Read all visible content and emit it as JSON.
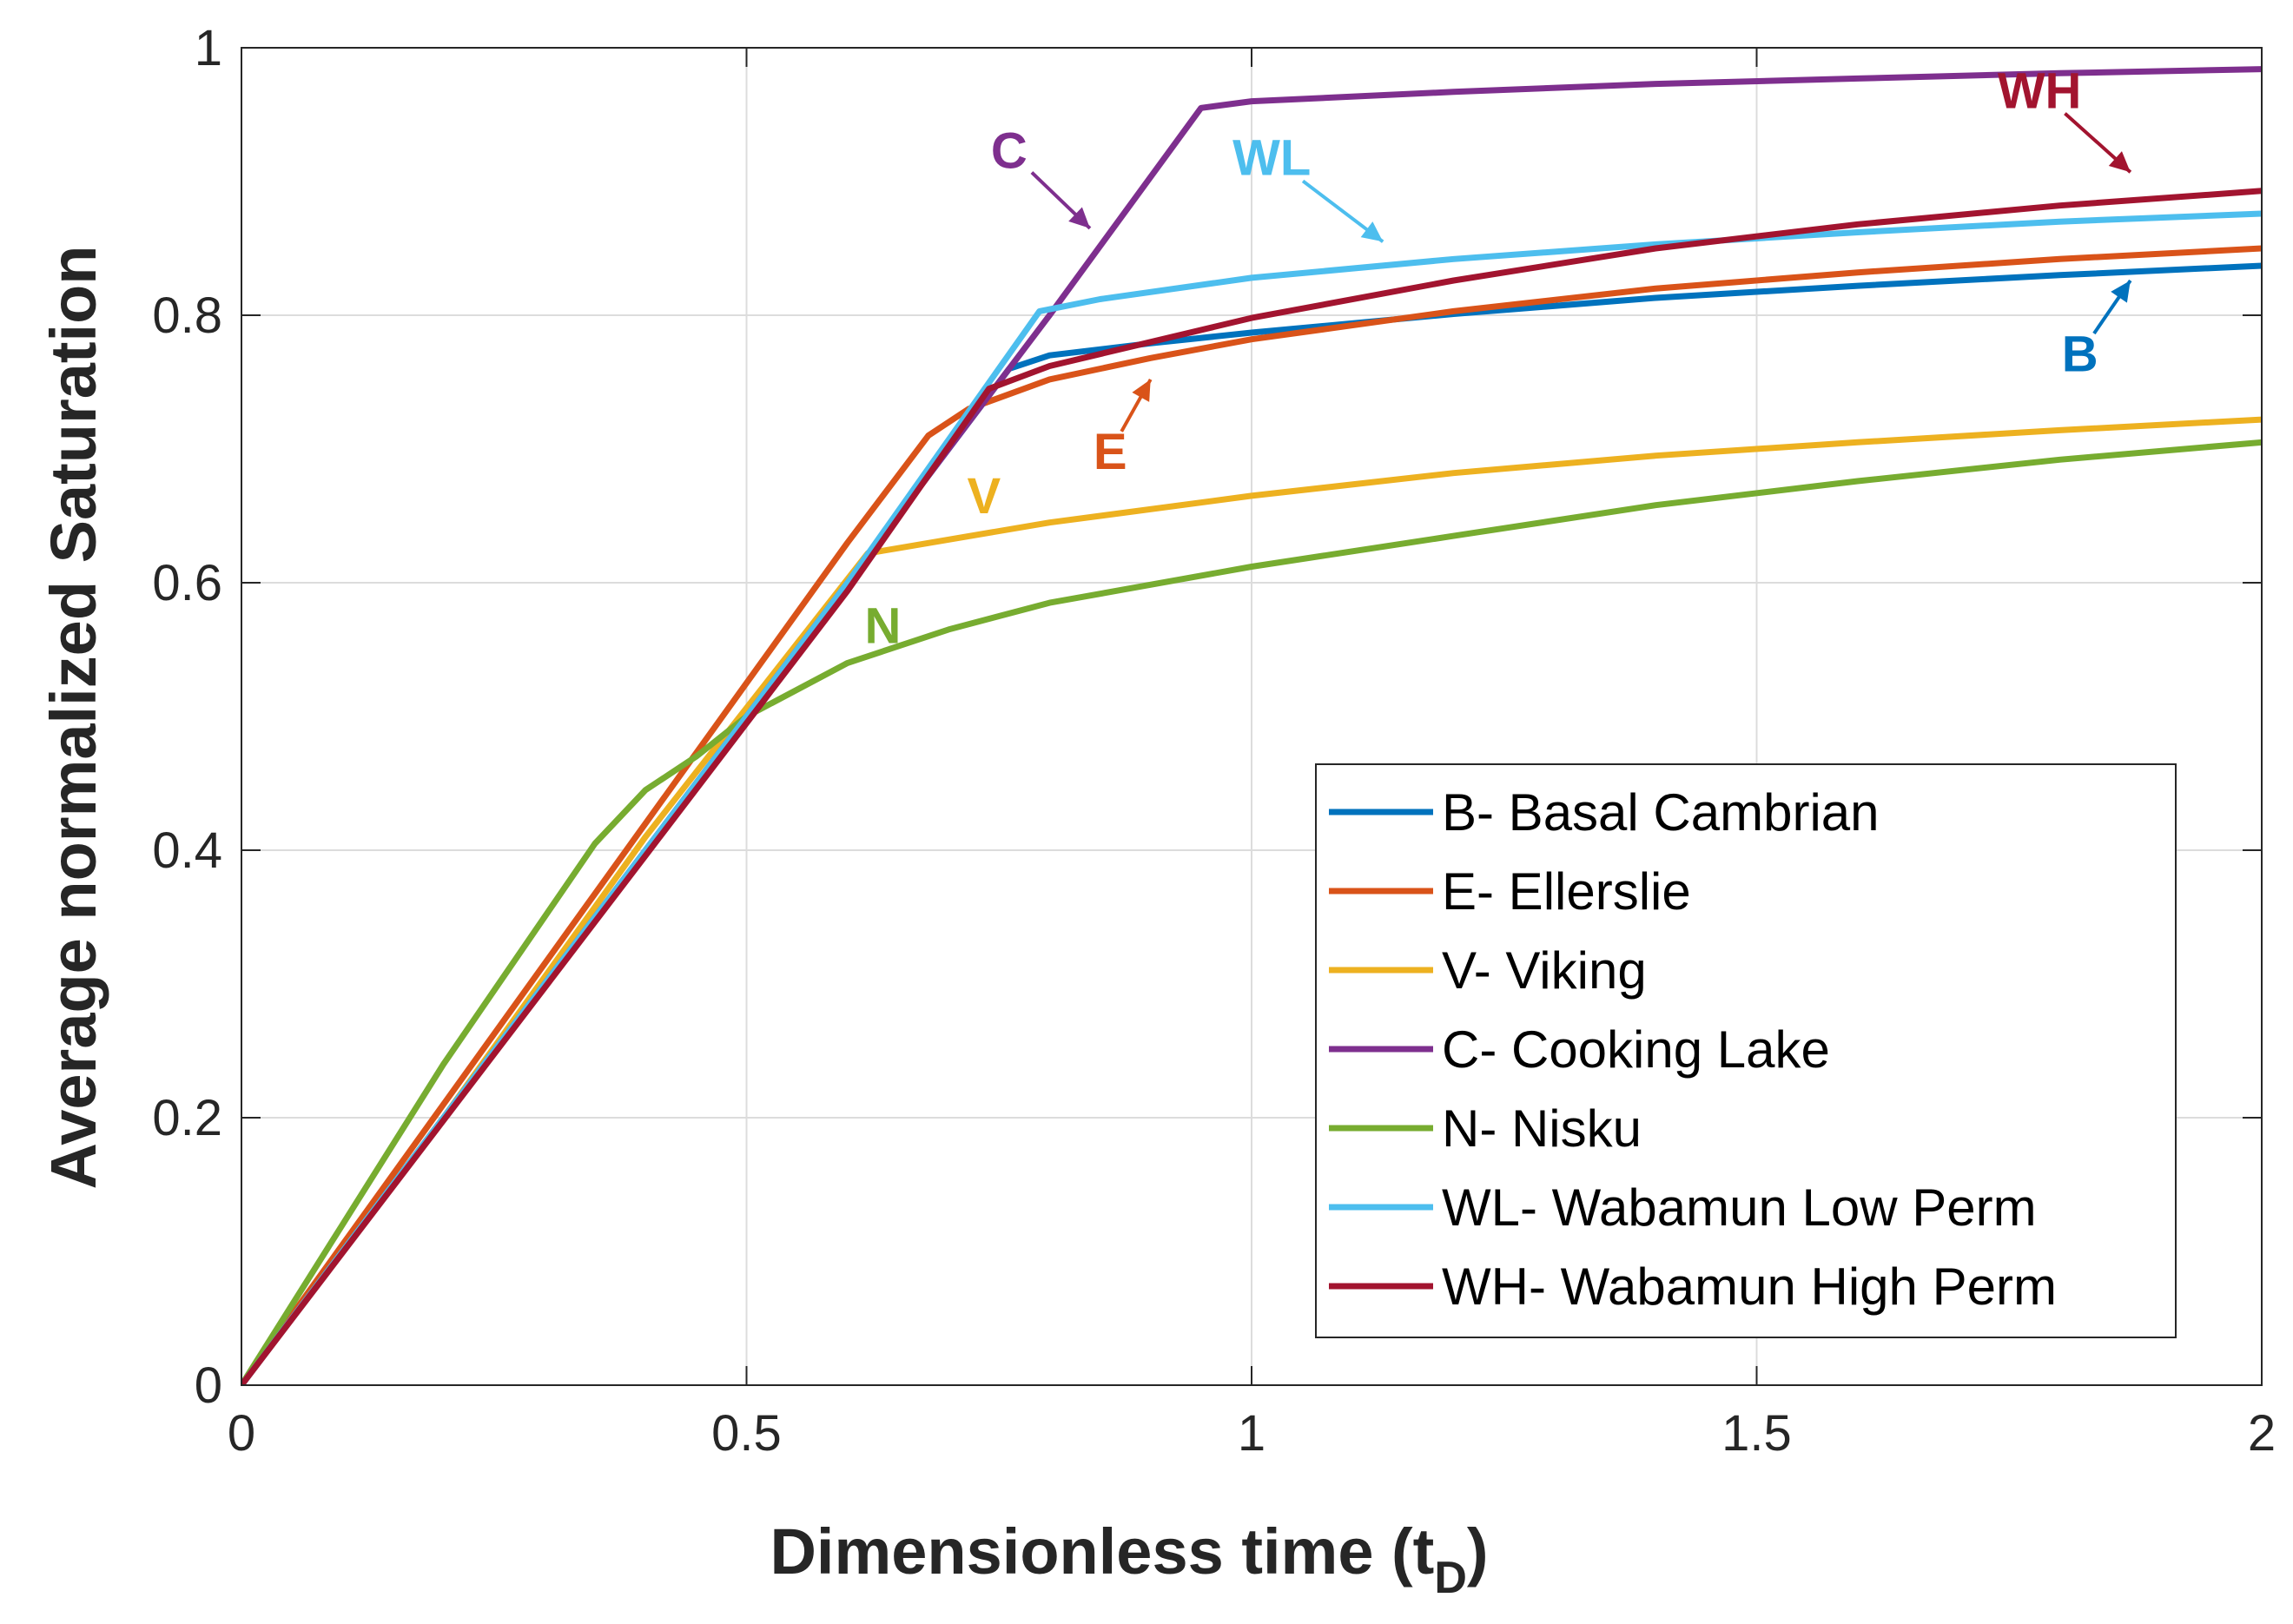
{
  "chart_data": {
    "type": "line",
    "title": "",
    "xlabel": "Dimensionless time (t",
    "xlabel_sub": "D",
    "xlabel_close": ")",
    "ylabel": "Average normalized Saturation",
    "xlim": [
      0,
      2
    ],
    "ylim": [
      0,
      1
    ],
    "xticks": [
      0,
      0.5,
      1,
      1.5,
      2
    ],
    "xtick_labels": [
      "0",
      "0.5",
      "1",
      "1.5",
      "2"
    ],
    "yticks": [
      0,
      0.2,
      0.4,
      0.6,
      0.8,
      1
    ],
    "ytick_labels": [
      "0",
      "0.2",
      "0.4",
      "0.6",
      "0.8",
      "1"
    ],
    "grid": true,
    "legend_position": "bottom-right",
    "series": [
      {
        "name": "B- Basal Cambrian",
        "short": "B",
        "color": "#0072BD",
        "x": [
          0,
          0.2,
          0.4,
          0.6,
          0.76,
          0.8,
          0.9,
          1.0,
          1.2,
          1.4,
          1.6,
          1.8,
          2.0
        ],
        "y": [
          0,
          0.2,
          0.4,
          0.6,
          0.76,
          0.77,
          0.779,
          0.787,
          0.801,
          0.813,
          0.822,
          0.83,
          0.837
        ]
      },
      {
        "name": "E- Ellerslie",
        "short": "E",
        "color": "#D95319",
        "x": [
          0,
          0.2,
          0.4,
          0.6,
          0.68,
          0.72,
          0.8,
          0.9,
          1.0,
          1.2,
          1.4,
          1.6,
          1.8,
          2.0
        ],
        "y": [
          0,
          0.21,
          0.42,
          0.63,
          0.71,
          0.73,
          0.752,
          0.768,
          0.782,
          0.803,
          0.82,
          0.832,
          0.842,
          0.85
        ]
      },
      {
        "name": "V- Viking",
        "short": "V",
        "color": "#EDB120",
        "x": [
          0,
          0.2,
          0.4,
          0.62,
          0.8,
          1.0,
          1.2,
          1.4,
          1.6,
          1.8,
          2.0
        ],
        "y": [
          0,
          0.2,
          0.41,
          0.622,
          0.645,
          0.665,
          0.682,
          0.695,
          0.705,
          0.714,
          0.722
        ]
      },
      {
        "name": "C- Cooking Lake",
        "short": "C",
        "color": "#7E2F8E",
        "x": [
          0,
          0.2,
          0.4,
          0.6,
          0.8,
          0.95,
          1.0,
          1.2,
          1.4,
          1.6,
          1.8,
          2.0
        ],
        "y": [
          0,
          0.2,
          0.4,
          0.6,
          0.8,
          0.955,
          0.96,
          0.967,
          0.973,
          0.977,
          0.981,
          0.984
        ]
      },
      {
        "name": "N- Nisku",
        "short": "N",
        "color": "#77AC30",
        "x": [
          0,
          0.1,
          0.2,
          0.3,
          0.35,
          0.4,
          0.45,
          0.5,
          0.6,
          0.7,
          0.8,
          1.0,
          1.2,
          1.4,
          1.6,
          1.8,
          2.0
        ],
        "y": [
          0,
          0.12,
          0.24,
          0.35,
          0.405,
          0.445,
          0.47,
          0.5,
          0.54,
          0.565,
          0.585,
          0.612,
          0.635,
          0.658,
          0.676,
          0.692,
          0.705
        ]
      },
      {
        "name": "WL- Wabamun Low Perm",
        "short": "WL",
        "color": "#4DBEEE",
        "x": [
          0,
          0.2,
          0.4,
          0.6,
          0.79,
          0.85,
          1.0,
          1.2,
          1.4,
          1.6,
          1.8,
          2.0
        ],
        "y": [
          0,
          0.2,
          0.4,
          0.6,
          0.803,
          0.812,
          0.828,
          0.842,
          0.853,
          0.862,
          0.87,
          0.876
        ]
      },
      {
        "name": "WH- Wabamun High Perm",
        "short": "WH",
        "color": "#A2142F",
        "x": [
          0,
          0.2,
          0.4,
          0.6,
          0.74,
          0.8,
          0.9,
          1.0,
          1.2,
          1.4,
          1.6,
          1.8,
          2.0
        ],
        "y": [
          0,
          0.198,
          0.396,
          0.594,
          0.745,
          0.762,
          0.78,
          0.798,
          0.826,
          0.85,
          0.868,
          0.882,
          0.893
        ]
      }
    ],
    "annotations": [
      {
        "text": "C",
        "series": "C- Cooking Lake",
        "color": "#7E2F8E",
        "tx": 0.76,
        "ty": 0.91,
        "ax": 0.84,
        "ay": 0.865
      },
      {
        "text": "WL",
        "series": "WL- Wabamun Low Perm",
        "color": "#4DBEEE",
        "tx": 1.02,
        "ty": 0.905,
        "ax": 1.13,
        "ay": 0.855
      },
      {
        "text": "WH",
        "series": "WH- Wabamun High Perm",
        "color": "#A2142F",
        "tx": 1.78,
        "ty": 0.955,
        "ax": 1.87,
        "ay": 0.907
      },
      {
        "text": "B",
        "series": "B- Basal Cambrian",
        "color": "#0072BD",
        "tx": 1.82,
        "ty": 0.758,
        "ax": 1.87,
        "ay": 0.826
      },
      {
        "text": "E",
        "series": "E- Ellerslie",
        "color": "#D95319",
        "tx": 0.86,
        "ty": 0.685,
        "ax": 0.9,
        "ay": 0.752
      },
      {
        "text": "V",
        "series": "V- Viking",
        "color": "#EDB120",
        "tx": 0.735,
        "ty": 0.652,
        "ax": null,
        "ay": null
      },
      {
        "text": "N",
        "series": "N- Nisku",
        "color": "#77AC30",
        "tx": 0.635,
        "ty": 0.555,
        "ax": null,
        "ay": null
      }
    ]
  }
}
